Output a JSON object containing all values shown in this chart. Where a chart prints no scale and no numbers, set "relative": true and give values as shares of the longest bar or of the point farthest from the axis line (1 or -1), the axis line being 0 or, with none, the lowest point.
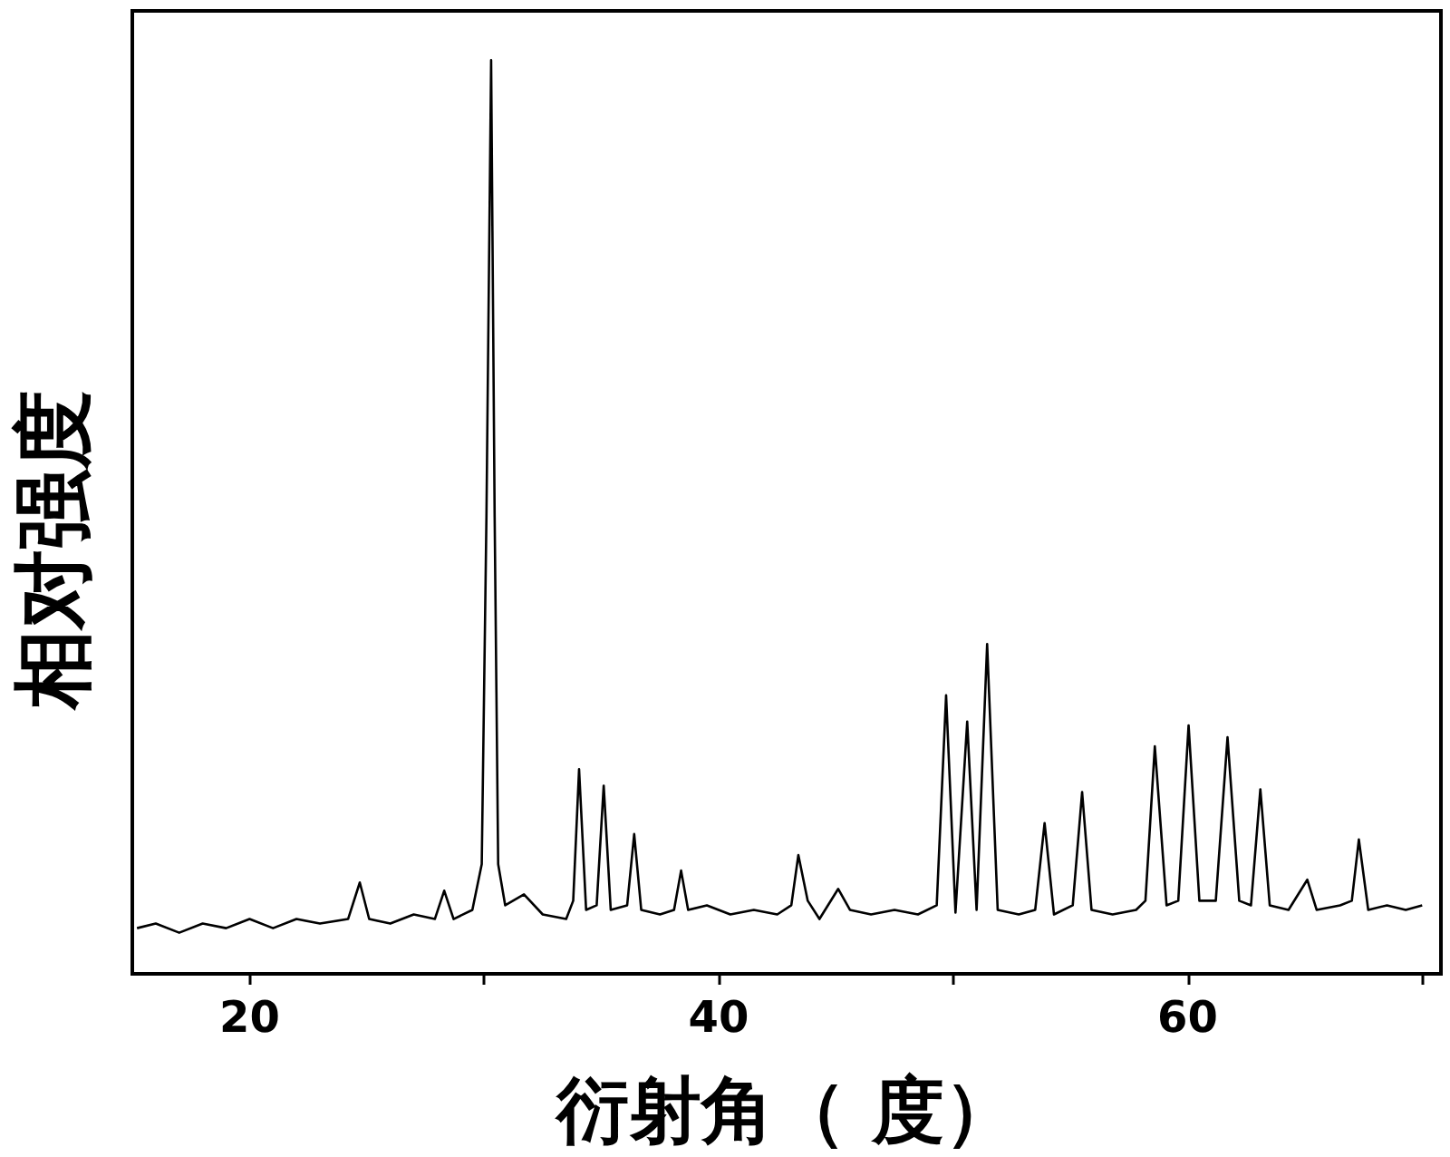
{
  "chart_data": {
    "type": "line",
    "xlabel": "衍射角（ 度）",
    "ylabel": "相对强度",
    "relative": true,
    "color": "#000000",
    "marker": "none",
    "grid": false,
    "xlim": [
      15,
      70.8
    ],
    "xticks": [
      20,
      {
        "value": 30,
        "label": null
      },
      40,
      {
        "value": 50,
        "label": null
      },
      60,
      {
        "value": 70,
        "label": null
      }
    ],
    "x": [
      15.2,
      16,
      17,
      18,
      19,
      20,
      21,
      22,
      23,
      24.2,
      24.7,
      25.1,
      26,
      27,
      27.9,
      28.3,
      28.7,
      29.5,
      29.9,
      30.1,
      30.3,
      30.45,
      30.6,
      30.9,
      31.7,
      32.5,
      33.5,
      33.8,
      34.05,
      34.35,
      34.8,
      35.1,
      35.4,
      36.1,
      36.4,
      36.7,
      37.5,
      38.1,
      38.4,
      38.7,
      39.5,
      40.5,
      41.5,
      42.5,
      43.1,
      43.4,
      43.8,
      44.3,
      45.1,
      45.6,
      46.5,
      47.5,
      48.5,
      49.3,
      49.7,
      50.1,
      50.6,
      51.0,
      51.45,
      51.9,
      52.8,
      53.5,
      53.9,
      54.3,
      55.1,
      55.5,
      55.9,
      56.8,
      57.8,
      58.2,
      58.6,
      59.1,
      59.6,
      60.04,
      60.5,
      61.2,
      61.7,
      62.2,
      62.7,
      63.1,
      63.5,
      64.3,
      65.1,
      65.5,
      66.5,
      67.0,
      67.3,
      67.7,
      68.5,
      69.3,
      70.0
    ],
    "values": [
      0.05,
      0.055,
      0.045,
      0.055,
      0.05,
      0.06,
      0.05,
      0.06,
      0.055,
      0.06,
      0.1,
      0.06,
      0.055,
      0.065,
      0.06,
      0.091,
      0.06,
      0.07,
      0.12,
      0.5,
      1,
      0.5,
      0.12,
      0.075,
      0.087,
      0.065,
      0.06,
      0.08,
      0.224,
      0.07,
      0.075,
      0.206,
      0.07,
      0.075,
      0.153,
      0.07,
      0.065,
      0.07,
      0.113,
      0.07,
      0.075,
      0.065,
      0.07,
      0.065,
      0.075,
      0.13,
      0.08,
      0.06,
      0.093,
      0.07,
      0.065,
      0.07,
      0.065,
      0.075,
      0.305,
      0.067,
      0.276,
      0.07,
      0.361,
      0.07,
      0.065,
      0.07,
      0.165,
      0.065,
      0.075,
      0.199,
      0.07,
      0.065,
      0.07,
      0.08,
      0.249,
      0.075,
      0.08,
      0.272,
      0.08,
      0.08,
      0.259,
      0.08,
      0.075,
      0.202,
      0.075,
      0.07,
      0.103,
      0.07,
      0.075,
      0.08,
      0.147,
      0.07,
      0.075,
      0.07,
      0.075
    ]
  }
}
